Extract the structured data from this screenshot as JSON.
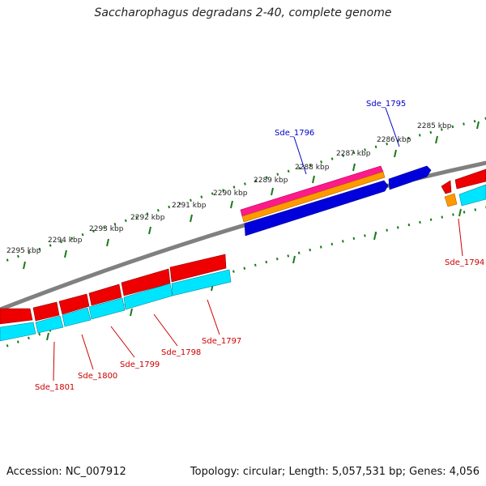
{
  "title": "Saccharophagus degradans 2-40, complete genome",
  "footer": {
    "accession": "Accession: NC_007912",
    "summary": "Topology: circular; Length: 5,057,531 bp; Genes: 4,056"
  },
  "kbp_labels": [
    "2285 kbp",
    "2286 kbp",
    "2287 kbp",
    "2288 kbp",
    "2289 kbp",
    "2290 kbp",
    "2291 kbp",
    "2292 kbp",
    "2293 kbp",
    "2294 kbp",
    "2295 kbp"
  ],
  "gene_labels": {
    "forward": [
      "Sde_1795",
      "Sde_1796"
    ],
    "reverse": [
      "Sde_1794",
      "Sde_1797",
      "Sde_1798",
      "Sde_1799",
      "Sde_1800",
      "Sde_1801"
    ]
  },
  "colors": {
    "forward_label": "#0000cc",
    "reverse_label": "#cc0000",
    "backbone": "#808080",
    "tick": "#1a7a1a",
    "forward_cds": "#0000dd",
    "forward_gene": "#ff1a8c",
    "forward_mrna": "#ff9900",
    "reverse_gene": "#ee0000",
    "reverse_cds": "#00e5ff",
    "reverse_mrna": "#ff9900"
  }
}
